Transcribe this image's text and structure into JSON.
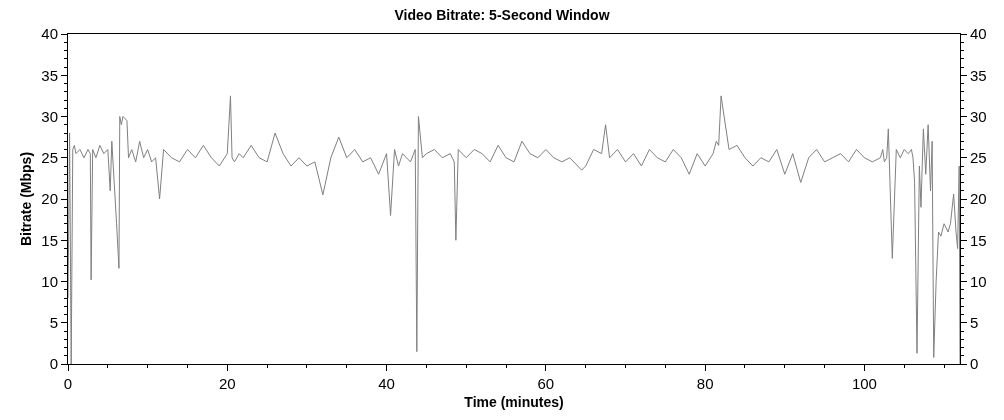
{
  "chart_data": {
    "type": "line",
    "title": "Video Bitrate: 5-Second Window",
    "xlabel": "Time (minutes)",
    "ylabel": "Bitrate (Mbps)",
    "x": [
      0,
      0.2,
      0.4,
      0.6,
      0.8,
      1,
      1.5,
      2,
      2.5,
      2.8,
      2.9,
      3.1,
      3.5,
      4,
      4.5,
      5,
      5.3,
      5.5,
      5.8,
      6.1,
      6.4,
      6.5,
      6.7,
      6.9,
      7.4,
      7.6,
      8,
      8.5,
      9,
      9.5,
      10,
      10.5,
      11,
      11.5,
      12,
      13,
      14,
      15,
      16,
      17,
      18,
      19,
      20,
      20.4,
      20.6,
      20.9,
      21.5,
      22,
      23,
      24,
      25,
      26,
      27,
      28,
      29,
      30,
      31,
      32,
      33,
      34,
      35,
      36,
      37,
      38,
      39,
      40,
      40.5,
      41,
      41.5,
      42,
      43,
      43.6,
      43.8,
      44,
      44.5,
      45,
      46,
      47,
      48,
      48.5,
      48.7,
      49,
      50,
      51,
      52,
      53,
      54,
      55,
      56,
      57,
      58,
      59,
      60,
      61,
      62,
      63,
      64,
      64.5,
      65,
      66,
      67,
      67.5,
      68,
      69,
      70,
      71,
      72,
      73,
      74,
      75,
      76,
      77,
      78,
      79,
      80,
      81,
      81.4,
      81.7,
      82,
      83,
      84,
      85,
      86,
      87,
      88,
      89,
      90,
      91,
      92,
      93,
      94,
      95,
      96,
      97,
      98,
      99,
      100,
      101,
      102,
      102.3,
      102.5,
      102.8,
      103,
      103.5,
      104,
      104.5,
      105,
      105.5,
      105.9,
      106.1,
      106.3,
      106.6,
      106.9,
      107.1,
      107.4,
      107.7,
      108,
      108.3,
      108.5,
      108.7,
      109,
      109.3,
      109.6,
      110,
      110.5,
      110.8,
      111.2,
      111.5,
      111.7,
      111.9,
      112
    ],
    "values": [
      8,
      28,
      0,
      26,
      26.5,
      25.5,
      26,
      25,
      26,
      25.5,
      10.2,
      26,
      25,
      26.5,
      25.5,
      26,
      21,
      27,
      22,
      17,
      11.6,
      30,
      29,
      30,
      29.5,
      25,
      26,
      24.5,
      27,
      25,
      26,
      24.5,
      25,
      20,
      26,
      25,
      24.5,
      26,
      25,
      26.5,
      25,
      24,
      25.5,
      32.5,
      25,
      24.5,
      25.5,
      25,
      26.5,
      25,
      24.5,
      28,
      25.5,
      24,
      25,
      24,
      24.5,
      20.5,
      25,
      27.5,
      25,
      26,
      24.5,
      25,
      23,
      25.5,
      18,
      26,
      24,
      25.5,
      24.5,
      26,
      1.5,
      30,
      25,
      25.5,
      26,
      25,
      25.5,
      24.5,
      15,
      26,
      25,
      26,
      25.5,
      24.5,
      26.5,
      25,
      24.5,
      27,
      25.5,
      25,
      26,
      25,
      24.5,
      25,
      24,
      23.5,
      24,
      26,
      25.5,
      29,
      25,
      26,
      24.5,
      25.5,
      24,
      26,
      25,
      24.5,
      26,
      25,
      23,
      25.5,
      24,
      25.5,
      27,
      26.5,
      32.5,
      26,
      26.5,
      25,
      24,
      25,
      24.5,
      26,
      23,
      25.5,
      22,
      25,
      26,
      24.5,
      25,
      25.5,
      24.5,
      26,
      25,
      24.5,
      25,
      26,
      24.5,
      25,
      28.5,
      12.8,
      26,
      25,
      26,
      25.5,
      26,
      25,
      22,
      1.3,
      24,
      19,
      28.5,
      23,
      29,
      21,
      27,
      0.8,
      10,
      16,
      15.5,
      17,
      16,
      17,
      20.6,
      16,
      14,
      24,
      0
    ],
    "color": "#808080",
    "xlim": [
      0,
      112
    ],
    "xticks": [
      0,
      20,
      40,
      60,
      80,
      100
    ],
    "ylim": [
      0,
      40
    ],
    "yticks": [
      0,
      5,
      10,
      15,
      20,
      25,
      30,
      35,
      40
    ],
    "y2lim": [
      0,
      40
    ],
    "y2ticks": [
      0,
      5,
      10,
      15,
      20,
      25,
      30,
      35,
      40
    ],
    "grid": false,
    "legend": false
  }
}
